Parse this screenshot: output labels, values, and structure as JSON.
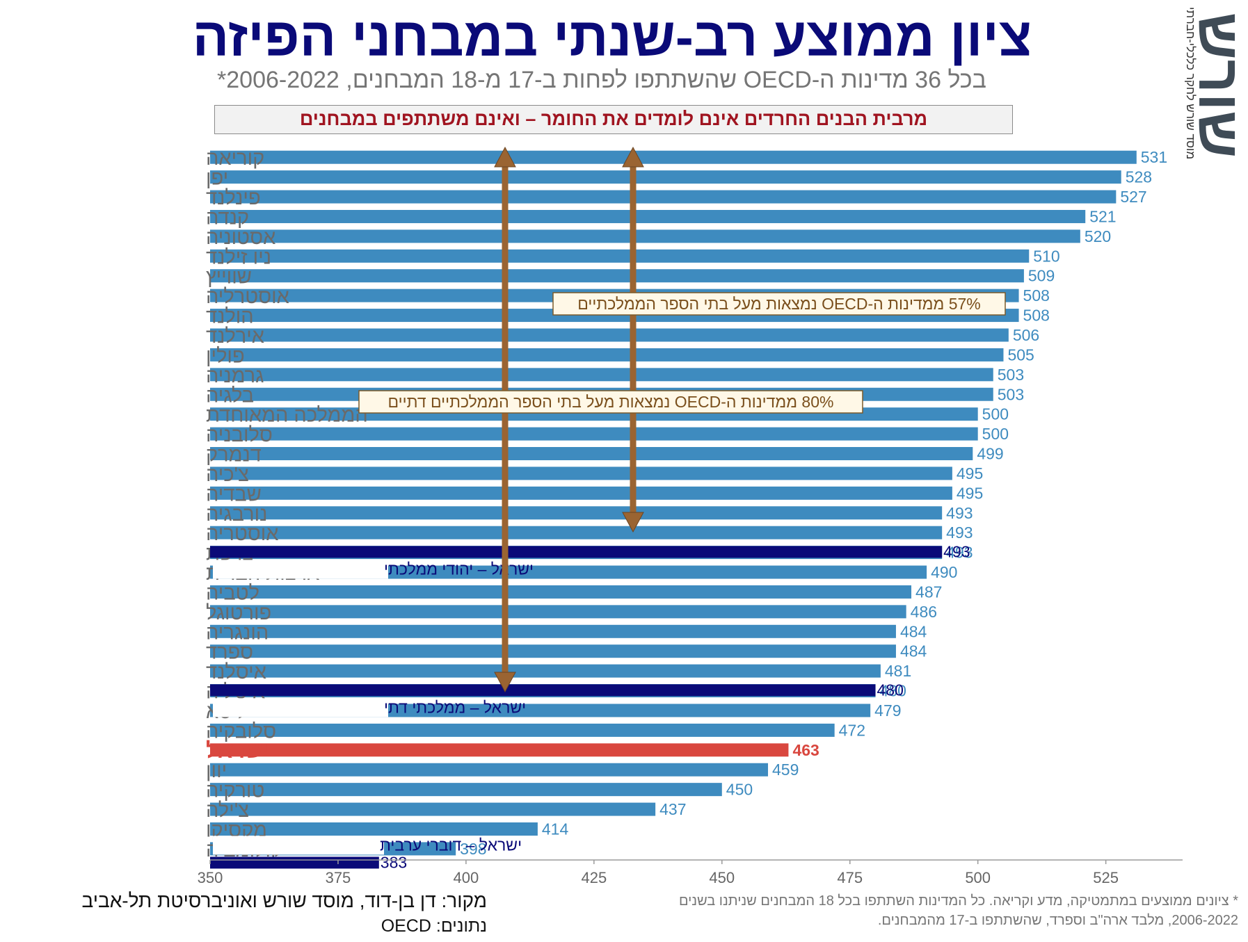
{
  "title": "ציון ממוצע רב-שנתי במבחני הפיזה",
  "subtitle": "בכל 36 מדינות ה-OECD שהשתתפו לפחות ב-17 מ-18 המבחנים, 2006-2022*",
  "banner": "מרבית הבנים החרדים אינם לומדים את החומר – ואינם משתתפים במבחנים",
  "logo": {
    "word": "שורש",
    "tagline": "מוסד שורש לחקר כלכלי-חברתי"
  },
  "source": "מקור:  דן בן-דוד, מוסד שורש ואוניברסיטת תל-אביב",
  "data_note": "נתונים: OECD",
  "footnote": "* ציונים ממוצעים במתמטיקה, מדע וקריאה. כל המדינות השתתפו בכל 18 המבחנים שניתנו בשנים 2006-2022, מלבד ארה\"ב וספרד, שהשתתפו ב-17 מהמבחנים.",
  "colors": {
    "bar": "#3e8bbf",
    "israel": "#d9473f",
    "israel_sub": "#0a0a78",
    "arrow": "#9a6432",
    "value_label": "#3e8bbf"
  },
  "chart_data": {
    "type": "bar",
    "orientation": "horizontal",
    "xlim": [
      350,
      540
    ],
    "xticks": [
      350,
      375,
      400,
      425,
      450,
      475,
      500,
      525
    ],
    "categories": [
      "קוריאה",
      "יפן",
      "פינלנד",
      "קנדה",
      "אסטוניה",
      "ניו זילנד",
      "שווייץ",
      "אוסטרליה",
      "הולנד",
      "אירלנד",
      "פולין",
      "גרמניה",
      "בלגיה",
      "הממלכה המאוחדת",
      "סלובניה",
      "דנמרק",
      "צ'כיה",
      "שבדיה",
      "נורבגיה",
      "אוסטריה",
      "צרפת",
      "ארצות הברית",
      "לטביה",
      "פורטוגל",
      "הונגריה",
      "ספרד",
      "איסלנד",
      "איטליה",
      "ליטא",
      "סלובקיה",
      "ישראל",
      "יוון",
      "טורקיה",
      "צ'ילה",
      "מקסיקו",
      "קולומביה"
    ],
    "values": [
      531,
      528,
      527,
      521,
      520,
      510,
      509,
      508,
      508,
      506,
      505,
      503,
      503,
      500,
      500,
      499,
      495,
      495,
      493,
      493,
      493,
      490,
      487,
      486,
      484,
      484,
      481,
      480,
      479,
      472,
      463,
      459,
      450,
      437,
      414,
      398
    ],
    "highlight": "ישראל",
    "israel_groups": [
      {
        "label": "ישראל – יהודי ממלכתי",
        "value": 493
      },
      {
        "label": "ישראל – ממלכתי דתי",
        "value": 480
      },
      {
        "label": "ישראל – דוברי ערבית",
        "value": 383
      }
    ],
    "annotations": [
      {
        "text": "57% ממדינות ה-OECD נמצאות מעל בתי הספר הממלכתיים"
      },
      {
        "text": "80% ממדינות ה-OECD נמצאות מעל בתי הספר הממלכתיים דתיים"
      }
    ]
  }
}
